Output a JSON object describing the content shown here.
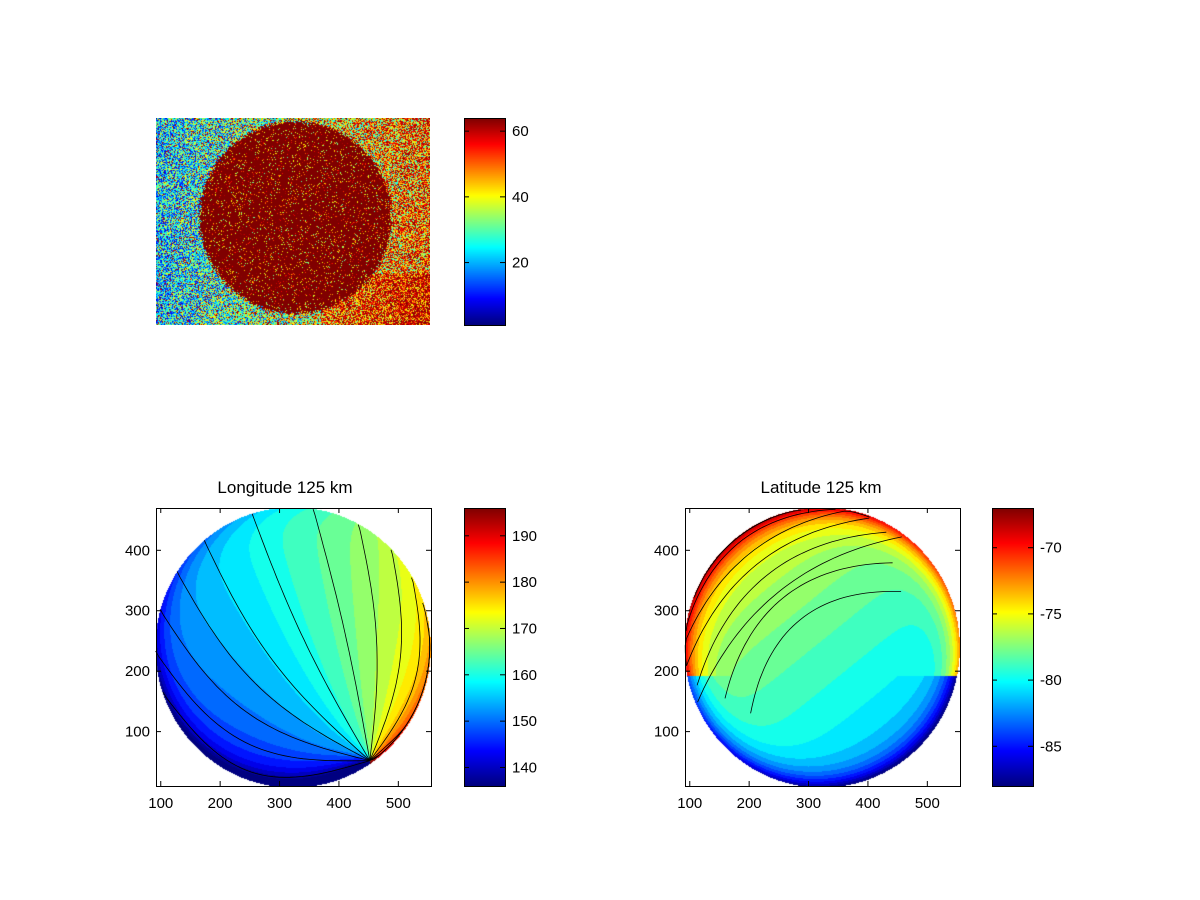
{
  "chart_data": [
    {
      "type": "heatmap",
      "description": "noisy intensity image with a bright disk",
      "title": "",
      "xlabel": "",
      "ylabel": "",
      "axes_visible": false,
      "colormap": "jet",
      "colorbar": {
        "range": [
          1,
          64
        ],
        "ticks": [
          20,
          40,
          60
        ],
        "tick_labels": [
          "20",
          "40",
          "60"
        ]
      },
      "disk_value": 64,
      "background_left_mean": 28,
      "background_right_mean": 45
    },
    {
      "type": "heatmap",
      "title": "Longitude 125 km",
      "xlabel": "",
      "ylabel": "",
      "colormap": "jet",
      "contour_lines": true,
      "xlim": [
        92,
        555
      ],
      "ylim": [
        10,
        470
      ],
      "xticks": [
        100,
        200,
        300,
        400,
        500
      ],
      "xtick_labels": [
        "100",
        "200",
        "300",
        "400",
        "500"
      ],
      "yticks": [
        100,
        200,
        300,
        400
      ],
      "ytick_labels": [
        "100",
        "200",
        "300",
        "400"
      ],
      "colorbar": {
        "range": [
          136,
          196
        ],
        "ticks": [
          140,
          150,
          160,
          170,
          180,
          190
        ],
        "tick_labels": [
          "140",
          "150",
          "160",
          "170",
          "180",
          "190"
        ]
      },
      "disk": {
        "cx": 322,
        "cy": 240,
        "r": 232
      },
      "field_center_value": 166
    },
    {
      "type": "heatmap",
      "title": "Latitude 125 km",
      "xlabel": "",
      "ylabel": "",
      "colormap": "jet",
      "contour_lines": true,
      "xlim": [
        92,
        555
      ],
      "ylim": [
        10,
        470
      ],
      "xticks": [
        100,
        200,
        300,
        400,
        500
      ],
      "xtick_labels": [
        "100",
        "200",
        "300",
        "400",
        "500"
      ],
      "yticks": [
        100,
        200,
        300,
        400
      ],
      "ytick_labels": [
        "100",
        "200",
        "300",
        "400"
      ],
      "colorbar": {
        "range": [
          -88,
          -67
        ],
        "ticks": [
          -85,
          -80,
          -75,
          -70
        ],
        "tick_labels": [
          "-85",
          "-80",
          "-75",
          "-70"
        ]
      },
      "disk": {
        "cx": 322,
        "cy": 240,
        "r": 232
      },
      "field_center_value": -78.5
    }
  ]
}
